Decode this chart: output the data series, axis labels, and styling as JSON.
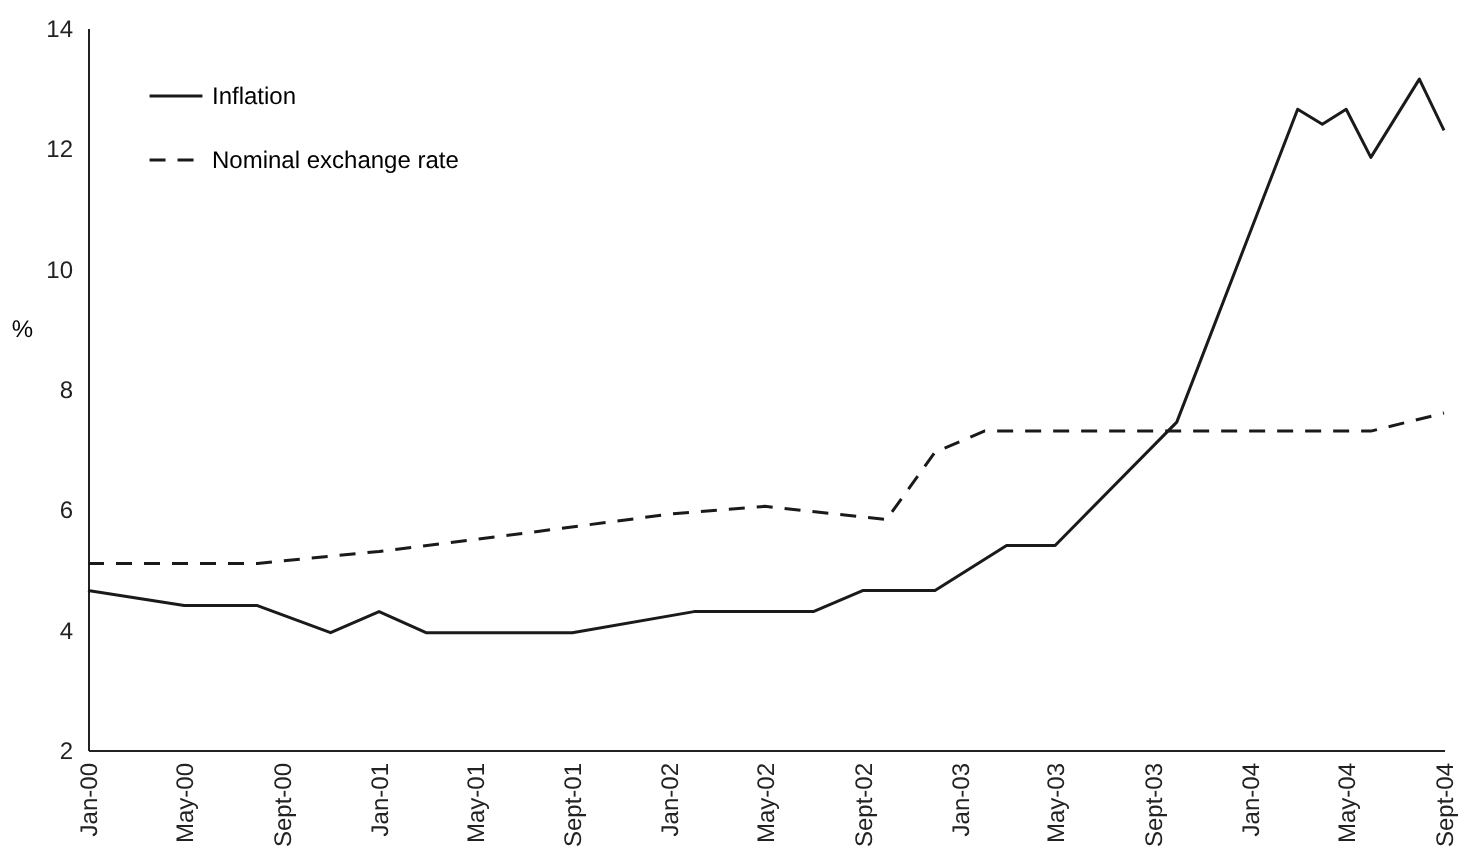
{
  "chart_data": {
    "type": "line",
    "ylabel": "%",
    "ylim": [
      2,
      14
    ],
    "yticks": [
      2,
      4,
      6,
      8,
      10,
      12,
      14
    ],
    "xlim": [
      "2000-01",
      "2004-09"
    ],
    "xticks": [
      {
        "value": "2000-01",
        "label": "Jan-00"
      },
      {
        "value": "2000-05",
        "label": "May-00"
      },
      {
        "value": "2000-09",
        "label": "Sept-00"
      },
      {
        "value": "2001-01",
        "label": "Jan-01"
      },
      {
        "value": "2001-05",
        "label": "May-01"
      },
      {
        "value": "2001-09",
        "label": "Sept-01"
      },
      {
        "value": "2002-01",
        "label": "Jan-02"
      },
      {
        "value": "2002-05",
        "label": "May-02"
      },
      {
        "value": "2002-09",
        "label": "Sept-02"
      },
      {
        "value": "2003-01",
        "label": "Jan-03"
      },
      {
        "value": "2003-05",
        "label": "May-03"
      },
      {
        "value": "2003-09",
        "label": "Sept-03"
      },
      {
        "value": "2004-01",
        "label": "Jan-04"
      },
      {
        "value": "2004-05",
        "label": "May-04"
      },
      {
        "value": "2004-09",
        "label": "Sept-04"
      }
    ],
    "grid": false,
    "legend": "top left",
    "marker": "none",
    "series": [
      {
        "name": "Inflation",
        "color": "#1a1a1a",
        "line_style": "solid",
        "x": [
          "2000-01",
          "2000-05",
          "2000-08",
          "2000-11",
          "2001-01",
          "2001-03",
          "2001-09",
          "2002-02",
          "2002-07",
          "2002-09",
          "2002-12",
          "2003-03",
          "2003-05",
          "2003-10",
          "2004-03",
          "2004-04",
          "2004-05",
          "2004-06",
          "2004-08",
          "2004-09"
        ],
        "values": [
          4.65,
          4.4,
          4.4,
          3.95,
          4.3,
          3.95,
          3.95,
          4.3,
          4.3,
          4.65,
          4.65,
          5.4,
          5.4,
          7.45,
          12.65,
          12.4,
          12.65,
          11.85,
          13.15,
          12.3
        ]
      },
      {
        "name": "Nominal exchange rate",
        "color": "#1a1a1a",
        "line_style": "dashed",
        "x": [
          "2000-01",
          "2000-08",
          "2001-01",
          "2001-07",
          "2002-01",
          "2002-05",
          "2002-10",
          "2002-12",
          "2003-02",
          "2004-06",
          "2004-09"
        ],
        "values": [
          5.1,
          5.1,
          5.3,
          5.6,
          5.92,
          6.05,
          5.83,
          6.95,
          7.3,
          7.3,
          7.6
        ]
      }
    ]
  }
}
